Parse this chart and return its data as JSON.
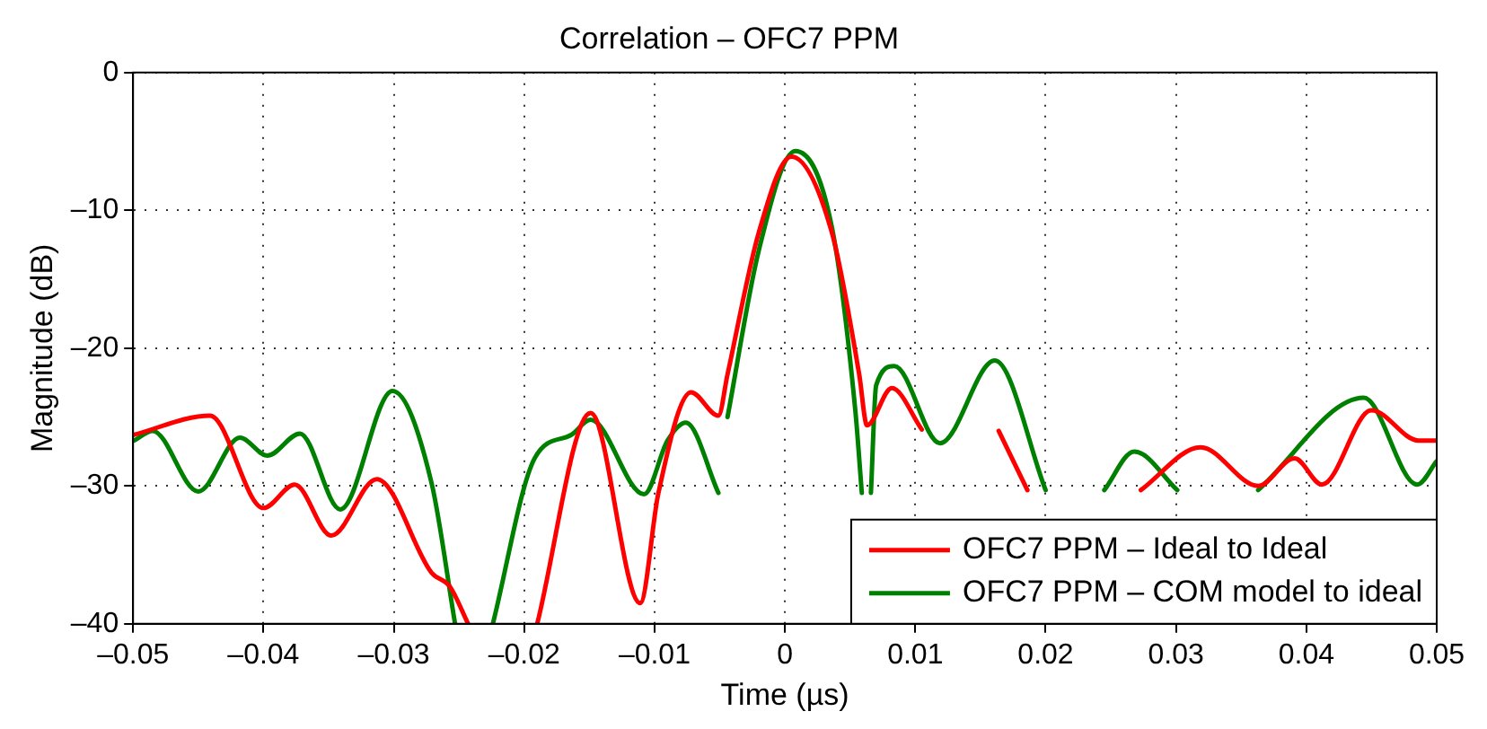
{
  "chart_data": {
    "type": "line",
    "title": "Correlation – OFC7 PPM",
    "xlabel": "Time (µs)",
    "ylabel": "Magnitude (dB)",
    "xlim": [
      -0.05,
      0.05
    ],
    "ylim": [
      -40,
      0
    ],
    "xticks": [
      {
        "value": -0.05,
        "label": "–0.05"
      },
      {
        "value": -0.04,
        "label": "–0.04"
      },
      {
        "value": -0.03,
        "label": "–0.03"
      },
      {
        "value": -0.02,
        "label": "–0.02"
      },
      {
        "value": -0.01,
        "label": "–0.01"
      },
      0,
      0.01,
      0.02,
      0.03,
      0.04,
      0.05
    ],
    "yticks": [
      {
        "value": -40,
        "label": "–40"
      },
      {
        "value": -30,
        "label": "–30"
      },
      {
        "value": -20,
        "label": "–20"
      },
      {
        "value": -10,
        "label": "–10"
      },
      0
    ],
    "grid": true,
    "legend": "bottom right",
    "marker": "none",
    "line_style": "solid",
    "series": [
      {
        "name": "OFC7 PPM – Ideal to Ideal",
        "color": "#ff0000",
        "x": [
          -0.05,
          -0.0441,
          -0.04,
          -0.0376,
          -0.0348,
          -0.0313,
          -0.0271,
          -0.0257,
          -0.0243,
          -0.0242,
          -0.0191,
          -0.019,
          -0.0149,
          -0.0111,
          -0.0097,
          -0.0072,
          -0.0051,
          -0.0044,
          -0.002,
          0.0005,
          0.0036,
          0.0057,
          0.0063,
          0.0082,
          0.0105,
          0.0107,
          0.0164,
          0.0186,
          0.0187,
          0.0273,
          0.0319,
          0.0363,
          0.0391,
          0.0412,
          0.045,
          0.0486,
          0.05
        ],
        "values": [
          -26.3,
          -24.9,
          -31.6,
          -29.9,
          -33.6,
          -29.5,
          -36.3,
          -37.3,
          -40,
          null,
          null,
          -40,
          -24.7,
          -38.5,
          -30.5,
          -23.2,
          -24.9,
          -21.9,
          -11.6,
          -6.1,
          -11.6,
          -21.9,
          -25.6,
          -22.9,
          -25.9,
          null,
          -26,
          -30.3,
          null,
          -30.3,
          -27.2,
          -30,
          -28,
          -29.9,
          -24.5,
          -26.7,
          -26.7
        ]
      },
      {
        "name": "OFC7 PPM – COM model to ideal",
        "color": "#008000",
        "x": [
          -0.0499,
          -0.0485,
          -0.045,
          -0.0418,
          -0.0397,
          -0.0372,
          -0.0341,
          -0.0301,
          -0.0271,
          -0.0253,
          -0.0252,
          -0.0225,
          -0.0224,
          -0.0192,
          -0.0164,
          -0.0149,
          -0.0108,
          -0.009,
          -0.0076,
          -0.0051,
          -0.005,
          -0.0045,
          -0.0044,
          -0.002,
          0.0008,
          0.0036,
          0.0054,
          0.0059,
          0.006,
          0.0065,
          0.0066,
          0.007,
          0.0084,
          0.0119,
          0.0161,
          0.02,
          0.0201,
          0.0244,
          0.0245,
          0.0268,
          0.0301,
          0.0302,
          0.0362,
          0.0363,
          0.0444,
          0.0485,
          0.05
        ],
        "values": [
          -26.7,
          -26,
          -30.4,
          -26.5,
          -27.8,
          -26.2,
          -31.7,
          -23.1,
          -29.8,
          -40,
          null,
          null,
          -40,
          -28,
          -26.3,
          -25.2,
          -30.6,
          -26.7,
          -25.4,
          -30.5,
          null,
          null,
          -25,
          -12.9,
          -5.7,
          -11.2,
          -24.5,
          -30.5,
          null,
          null,
          -30.5,
          -22.7,
          -21.3,
          -26.9,
          -20.9,
          -30.3,
          null,
          null,
          -30.3,
          -27.5,
          -30.3,
          null,
          null,
          -30.3,
          -23.6,
          -29.9,
          -28.2
        ]
      }
    ]
  }
}
